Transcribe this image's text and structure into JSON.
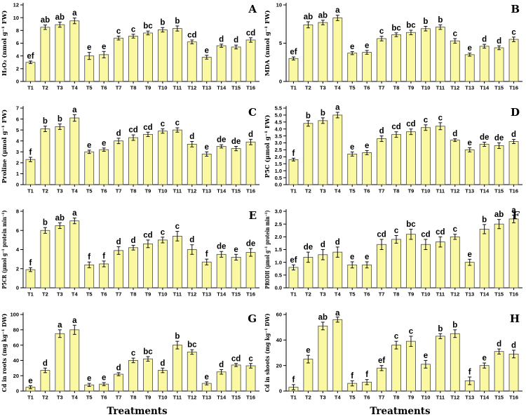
{
  "layout": {
    "grid": "4 rows x 2 columns",
    "panel_letter_position": "top-right",
    "bar_color": "#FBF8A2",
    "bar_stroke": "#454545",
    "axis_color": "#000000",
    "error_bar_color": "#111111",
    "x_axis_title": "Treatments",
    "background": "#ffffff"
  },
  "chart_data": [
    {
      "type": "bar",
      "panel": "A",
      "ylabel": "H₂O₂ (nmol g⁻¹ FW)",
      "xlabel": "",
      "ylim": [
        0,
        12
      ],
      "yticks": [
        0,
        2,
        4,
        6,
        8,
        10,
        12
      ],
      "ytick_decimals": 0,
      "categories": [
        "T1",
        "T2",
        "T3",
        "T4",
        "T5",
        "T6",
        "T7",
        "T8",
        "T9",
        "T10",
        "T11",
        "T12",
        "T13",
        "T14",
        "T15",
        "T16"
      ],
      "values": [
        3.0,
        8.5,
        8.9,
        9.5,
        4.0,
        4.2,
        6.8,
        7.1,
        7.6,
        8.1,
        8.3,
        6.2,
        3.8,
        5.6,
        5.4,
        6.5
      ],
      "errors": [
        0.2,
        0.35,
        0.4,
        0.45,
        0.55,
        0.5,
        0.3,
        0.3,
        0.3,
        0.35,
        0.4,
        0.3,
        0.3,
        0.25,
        0.3,
        0.35
      ],
      "sig_letters": [
        "ef",
        "ab",
        "ab",
        "a",
        "e",
        "e",
        "c",
        "c",
        "bc",
        "b",
        "b",
        "cd",
        "e",
        "d",
        "d",
        "cd"
      ]
    },
    {
      "type": "bar",
      "panel": "B",
      "ylabel": "MDA (nmol g⁻¹ FW)",
      "xlabel": "",
      "ylim": [
        0,
        10
      ],
      "yticks": [
        0,
        5,
        10
      ],
      "ytick_decimals": 0,
      "categories": [
        "T1",
        "T2",
        "T3",
        "T4",
        "T5",
        "T6",
        "T7",
        "T8",
        "T9",
        "T10",
        "T11",
        "T12",
        "T13",
        "T14",
        "T15",
        "T16"
      ],
      "values": [
        3.0,
        7.4,
        7.7,
        8.3,
        3.7,
        3.8,
        5.6,
        6.1,
        6.4,
        6.9,
        7.1,
        5.3,
        3.5,
        4.6,
        4.4,
        5.5
      ],
      "errors": [
        0.2,
        0.4,
        0.3,
        0.35,
        0.2,
        0.25,
        0.3,
        0.25,
        0.3,
        0.3,
        0.3,
        0.3,
        0.2,
        0.25,
        0.25,
        0.3
      ],
      "sig_letters": [
        "ef",
        "ab",
        "ab",
        "a",
        "e",
        "e",
        "c",
        "bc",
        "bc",
        "b",
        "b",
        "c",
        "e",
        "d",
        "d",
        "c"
      ]
    },
    {
      "type": "bar",
      "panel": "C",
      "ylabel": "Proline (μmol g⁻¹ FW)",
      "xlabel": "",
      "ylim": [
        0,
        7
      ],
      "yticks": [
        0,
        1,
        2,
        3,
        4,
        5,
        6,
        7
      ],
      "ytick_decimals": 0,
      "categories": [
        "T1",
        "T2",
        "T3",
        "T4",
        "T5",
        "T6",
        "T7",
        "T8",
        "T9",
        "T10",
        "T11",
        "T12",
        "T13",
        "T14",
        "T15",
        "T16"
      ],
      "values": [
        2.3,
        5.1,
        5.3,
        6.1,
        3.0,
        3.2,
        4.0,
        4.3,
        4.6,
        4.9,
        5.0,
        3.7,
        2.8,
        3.5,
        3.3,
        3.9
      ],
      "errors": [
        0.2,
        0.25,
        0.25,
        0.3,
        0.15,
        0.15,
        0.25,
        0.25,
        0.2,
        0.2,
        0.2,
        0.25,
        0.2,
        0.15,
        0.2,
        0.25
      ],
      "sig_letters": [
        "f",
        "b",
        "b",
        "a",
        "e",
        "e",
        "d",
        "cd",
        "cd",
        "c",
        "c",
        "d",
        "e",
        "de",
        "de",
        "d"
      ]
    },
    {
      "type": "bar",
      "panel": "D",
      "ylabel": "P5C (μmol g⁻¹ FW)",
      "xlabel": "",
      "ylim": [
        0,
        5.5
      ],
      "yticks": [
        0,
        0.5,
        1,
        1.5,
        2,
        2.5,
        3,
        3.5,
        4,
        4.5,
        5,
        5.5
      ],
      "ytick_decimals": 1,
      "categories": [
        "T1",
        "T2",
        "T3",
        "T4",
        "T5",
        "T6",
        "T7",
        "T8",
        "T9",
        "T10",
        "T11",
        "T12",
        "T13",
        "T14",
        "T15",
        "T16"
      ],
      "values": [
        1.8,
        4.4,
        4.6,
        5.0,
        2.2,
        2.3,
        3.3,
        3.6,
        3.8,
        4.1,
        4.2,
        3.2,
        2.5,
        2.9,
        2.8,
        3.1
      ],
      "errors": [
        0.1,
        0.2,
        0.2,
        0.2,
        0.15,
        0.15,
        0.2,
        0.2,
        0.2,
        0.2,
        0.25,
        0.1,
        0.15,
        0.15,
        0.2,
        0.15
      ],
      "sig_letters": [
        "f",
        "b",
        "b",
        "a",
        "e",
        "e",
        "d",
        "cd",
        "cd",
        "c",
        "c",
        "d",
        "e",
        "de",
        "de",
        "d"
      ]
    },
    {
      "type": "bar",
      "panel": "E",
      "ylabel": "P5CR (μmol g⁻¹ protein min⁻¹)",
      "xlabel": "",
      "ylim": [
        0,
        8
      ],
      "yticks": [
        0,
        2,
        4,
        6,
        8
      ],
      "ytick_decimals": 0,
      "categories": [
        "T1",
        "T2",
        "T3",
        "T4",
        "T5",
        "T6",
        "T7",
        "T8",
        "T9",
        "T10",
        "T11",
        "T12",
        "T13",
        "T14",
        "T15",
        "T16"
      ],
      "values": [
        1.9,
        6.0,
        6.5,
        7.0,
        2.4,
        2.5,
        3.9,
        4.2,
        4.6,
        5.0,
        5.4,
        4.0,
        2.7,
        3.5,
        3.2,
        3.7
      ],
      "errors": [
        0.2,
        0.3,
        0.3,
        0.3,
        0.3,
        0.3,
        0.4,
        0.25,
        0.4,
        0.3,
        0.5,
        0.5,
        0.3,
        0.3,
        0.3,
        0.4
      ],
      "sig_letters": [
        "f",
        "b",
        "ab",
        "a",
        "f",
        "f",
        "d",
        "d",
        "cd",
        "c",
        "c",
        "d",
        "f",
        "de",
        "e",
        "de"
      ]
    },
    {
      "type": "bar",
      "panel": "F",
      "ylabel": "PRODH (μmol g⁻¹ protein min⁻¹)",
      "xlabel": "",
      "ylim": [
        0,
        3
      ],
      "yticks": [
        0,
        0.5,
        1,
        1.5,
        2,
        2.5,
        3
      ],
      "ytick_decimals": 1,
      "categories": [
        "T1",
        "T2",
        "T3",
        "T4",
        "T5",
        "T6",
        "T7",
        "T8",
        "T9",
        "T10",
        "T11",
        "T12",
        "T13",
        "T14",
        "T15",
        "T16"
      ],
      "values": [
        0.8,
        1.2,
        1.3,
        1.4,
        0.9,
        0.9,
        1.7,
        1.9,
        2.1,
        1.7,
        1.8,
        2.0,
        1.0,
        2.3,
        2.5,
        2.7
      ],
      "errors": [
        0.1,
        0.2,
        0.2,
        0.2,
        0.12,
        0.12,
        0.2,
        0.15,
        0.2,
        0.2,
        0.2,
        0.1,
        0.12,
        0.18,
        0.18,
        0.15
      ],
      "sig_letters": [
        "ef",
        "de",
        "d",
        "d",
        "e",
        "e",
        "cd",
        "c",
        "bc",
        "cd",
        "cd",
        "c",
        "e",
        "b",
        "ab",
        "a"
      ]
    },
    {
      "type": "bar",
      "panel": "G",
      "ylabel": "Cd in roots (mg kg⁻¹ DW)",
      "xlabel": "Treatments",
      "ylim": [
        0,
        100
      ],
      "yticks": [
        0,
        20,
        40,
        60,
        80,
        100
      ],
      "ytick_decimals": 0,
      "categories": [
        "T1",
        "T2",
        "T3",
        "T4",
        "T5",
        "T6",
        "T7",
        "T8",
        "T9",
        "T10",
        "T11",
        "T12",
        "T13",
        "T14",
        "T15",
        "T16"
      ],
      "values": [
        5,
        27,
        75,
        80,
        8,
        9,
        22,
        40,
        42,
        27,
        60,
        51,
        10,
        25,
        34,
        33
      ],
      "errors": [
        2,
        3,
        5,
        6,
        2,
        2,
        2,
        3,
        3,
        3,
        5,
        3,
        2,
        3,
        2,
        3
      ],
      "sig_letters": [
        "e",
        "d",
        "a",
        "a",
        "e",
        "e",
        "d",
        "c",
        "bc",
        "d",
        "b",
        "bc",
        "e",
        "d",
        "cd",
        "c"
      ]
    },
    {
      "type": "bar",
      "panel": "H",
      "ylabel": "Cd in shoots (mg kg⁻¹ DW)",
      "xlabel": "Treatments",
      "ylim": [
        0,
        60
      ],
      "yticks": [
        0,
        20,
        40,
        60
      ],
      "ytick_decimals": 0,
      "categories": [
        "T1",
        "T2",
        "T3",
        "T4",
        "T5",
        "T6",
        "T7",
        "T8",
        "T9",
        "T10",
        "T11",
        "T12",
        "T13",
        "T14",
        "T15",
        "T16"
      ],
      "values": [
        3,
        25,
        51,
        56,
        6,
        7,
        18,
        36,
        39,
        21,
        43,
        45,
        8,
        20,
        31,
        29
      ],
      "errors": [
        2,
        3,
        3,
        2,
        2,
        2,
        2,
        3,
        4,
        3,
        2,
        3,
        3,
        2,
        2,
        3
      ],
      "sig_letters": [
        "f",
        "e",
        "ab",
        "a",
        "f",
        "f",
        "ef",
        "c",
        "c",
        "e",
        "b",
        "b",
        "f",
        "e",
        "d",
        "d"
      ]
    }
  ]
}
